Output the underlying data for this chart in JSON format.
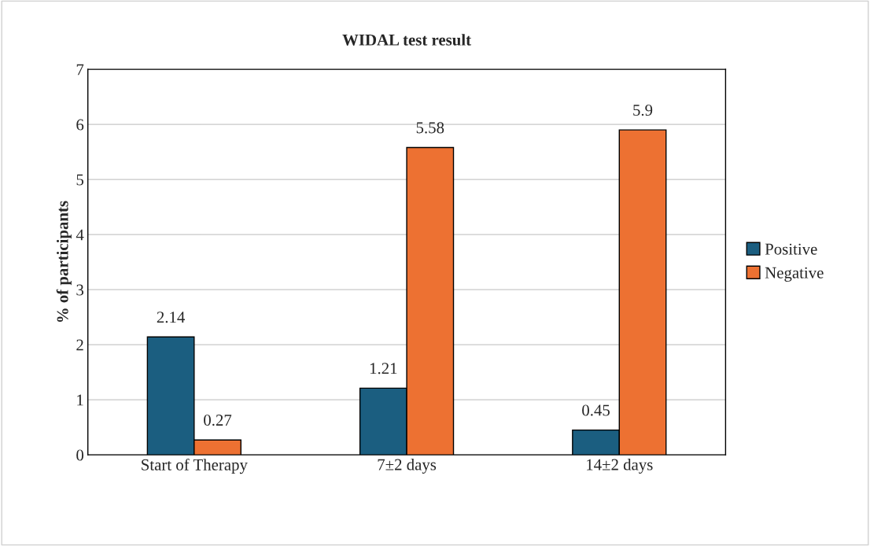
{
  "chart_data": {
    "type": "bar",
    "title": "WIDAL test result",
    "ylabel": "% of participants",
    "categories": [
      "Start of Therapy",
      "7±2 days",
      "14±2 days"
    ],
    "series": [
      {
        "name": "Positive",
        "color": "#1b5e80",
        "values": [
          2.14,
          1.21,
          0.45
        ]
      },
      {
        "name": "Negative",
        "color": "#ed7132",
        "values": [
          0.27,
          5.58,
          5.9
        ]
      }
    ],
    "ylim": [
      0,
      7
    ],
    "yticks": [
      0,
      1,
      2,
      3,
      4,
      5,
      6,
      7
    ],
    "grid": "y",
    "legend": "right",
    "data_labels": true
  }
}
